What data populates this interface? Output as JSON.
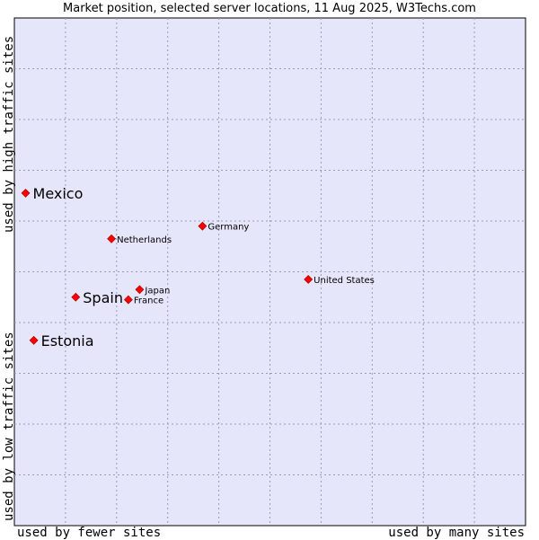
{
  "chart_data": {
    "type": "scatter",
    "title": "Market position, selected server locations, 11 Aug 2025, W3Techs.com",
    "y_label_top": "used by high traffic sites",
    "y_label_bottom": "used by low traffic sites",
    "x_label_left": "used by fewer sites",
    "x_label_right": "used by many sites",
    "xlim": [
      0,
      10
    ],
    "ylim": [
      0,
      10
    ],
    "grid": true,
    "background_color": "#e6e6fa",
    "grid_color": "#9999bb",
    "point_color": "#ff0000",
    "points": [
      {
        "label": "Mexico",
        "x": 0.22,
        "y": 6.55,
        "size": "large"
      },
      {
        "label": "Germany",
        "x": 3.68,
        "y": 5.9,
        "size": "small"
      },
      {
        "label": "Netherlands",
        "x": 1.9,
        "y": 5.65,
        "size": "small"
      },
      {
        "label": "United States",
        "x": 5.75,
        "y": 4.85,
        "size": "small"
      },
      {
        "label": "Japan",
        "x": 2.45,
        "y": 4.65,
        "size": "small"
      },
      {
        "label": "Spain",
        "x": 1.2,
        "y": 4.5,
        "size": "large"
      },
      {
        "label": "France",
        "x": 2.23,
        "y": 4.45,
        "size": "small"
      },
      {
        "label": "Estonia",
        "x": 0.38,
        "y": 3.65,
        "size": "large"
      }
    ]
  }
}
